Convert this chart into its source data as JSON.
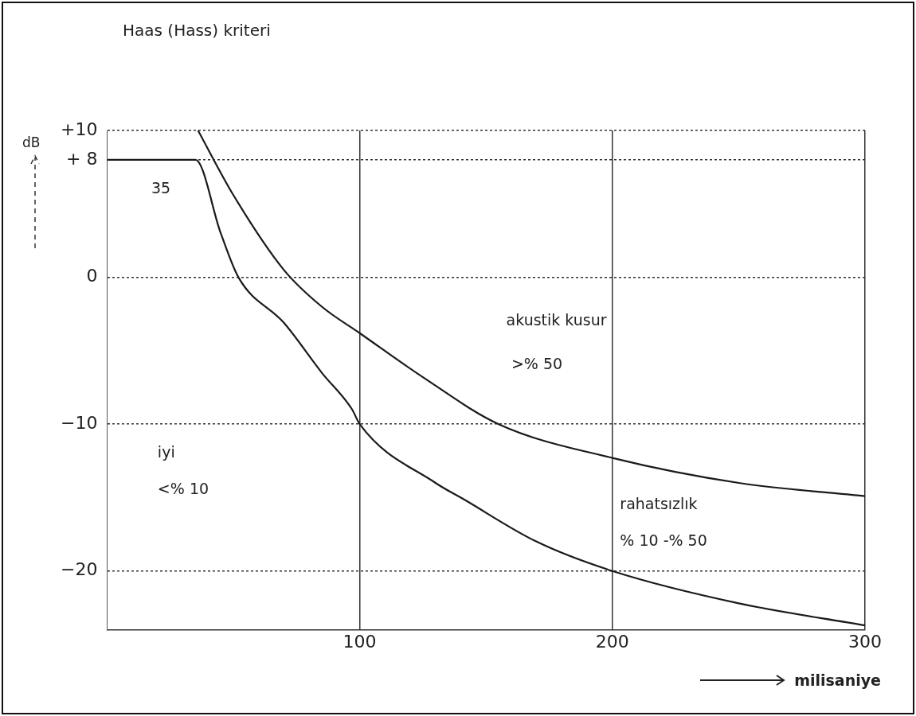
{
  "chart_data": {
    "type": "line",
    "title": "Haas (Hass) kriteri",
    "xlabel": "milisaniye",
    "ylabel": "dB",
    "xlim": [
      0,
      300
    ],
    "xticks": [
      100,
      200,
      300
    ],
    "ylim": [
      -24,
      10
    ],
    "yticks": [
      {
        "value": 10,
        "label": "+10"
      },
      {
        "value": 8,
        "label": "+ 8"
      },
      0,
      -10,
      -20
    ],
    "grid": true,
    "legend": false,
    "marker": "none",
    "line_style": "solid",
    "series": [
      {
        "color": "#1a1a1a",
        "x": [
          36,
          50,
          70,
          85,
          100,
          125,
          155,
          200,
          250,
          300
        ],
        "values": [
          10,
          5.6,
          0.5,
          -2,
          -3.8,
          -6.8,
          -10,
          -12.3,
          -14,
          -14.9
        ]
      },
      {
        "color": "#1a1a1a",
        "x": [
          0,
          35,
          45,
          52,
          70,
          85,
          97,
          100,
          130,
          141,
          170,
          200,
          250,
          300
        ],
        "values": [
          8,
          8,
          3,
          0,
          -3.1,
          -6.5,
          -9,
          -10,
          -14,
          -15.1,
          -18,
          -20,
          -22.2,
          -23.7
        ]
      }
    ],
    "annotations": [
      "35",
      "akustik kusur",
      ">% 50",
      "iyi",
      "<% 10",
      "rahatsızlık",
      "% 10 -% 50"
    ]
  }
}
